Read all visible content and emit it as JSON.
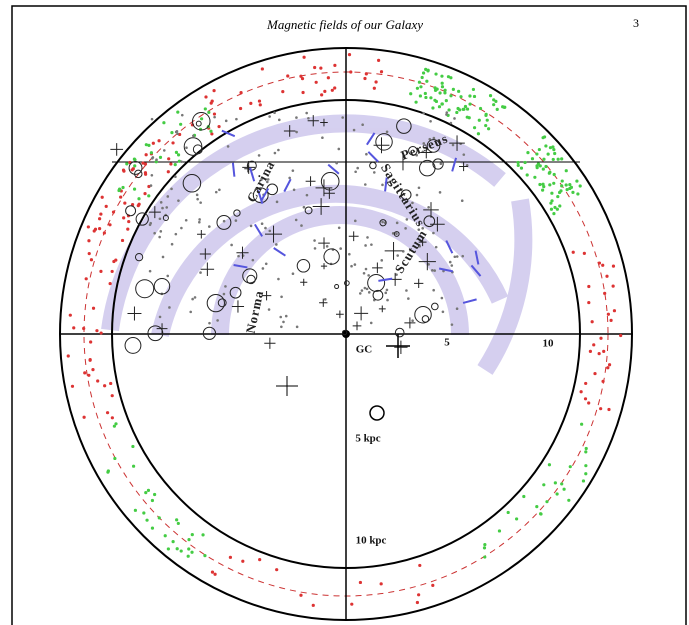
{
  "header": {
    "title": "Magnetic fields of our Galaxy",
    "page_number": "3"
  },
  "arms": {
    "perseus": "Perseus",
    "carina": "Carina",
    "sagittarius": "Sagittarius",
    "scutum": "Scutum",
    "norma": "Norma"
  },
  "axis_labels": {
    "center": "GC",
    "x5": "5",
    "x10": "10",
    "y5": "5 kpc",
    "y10": "10 kpc"
  }
}
